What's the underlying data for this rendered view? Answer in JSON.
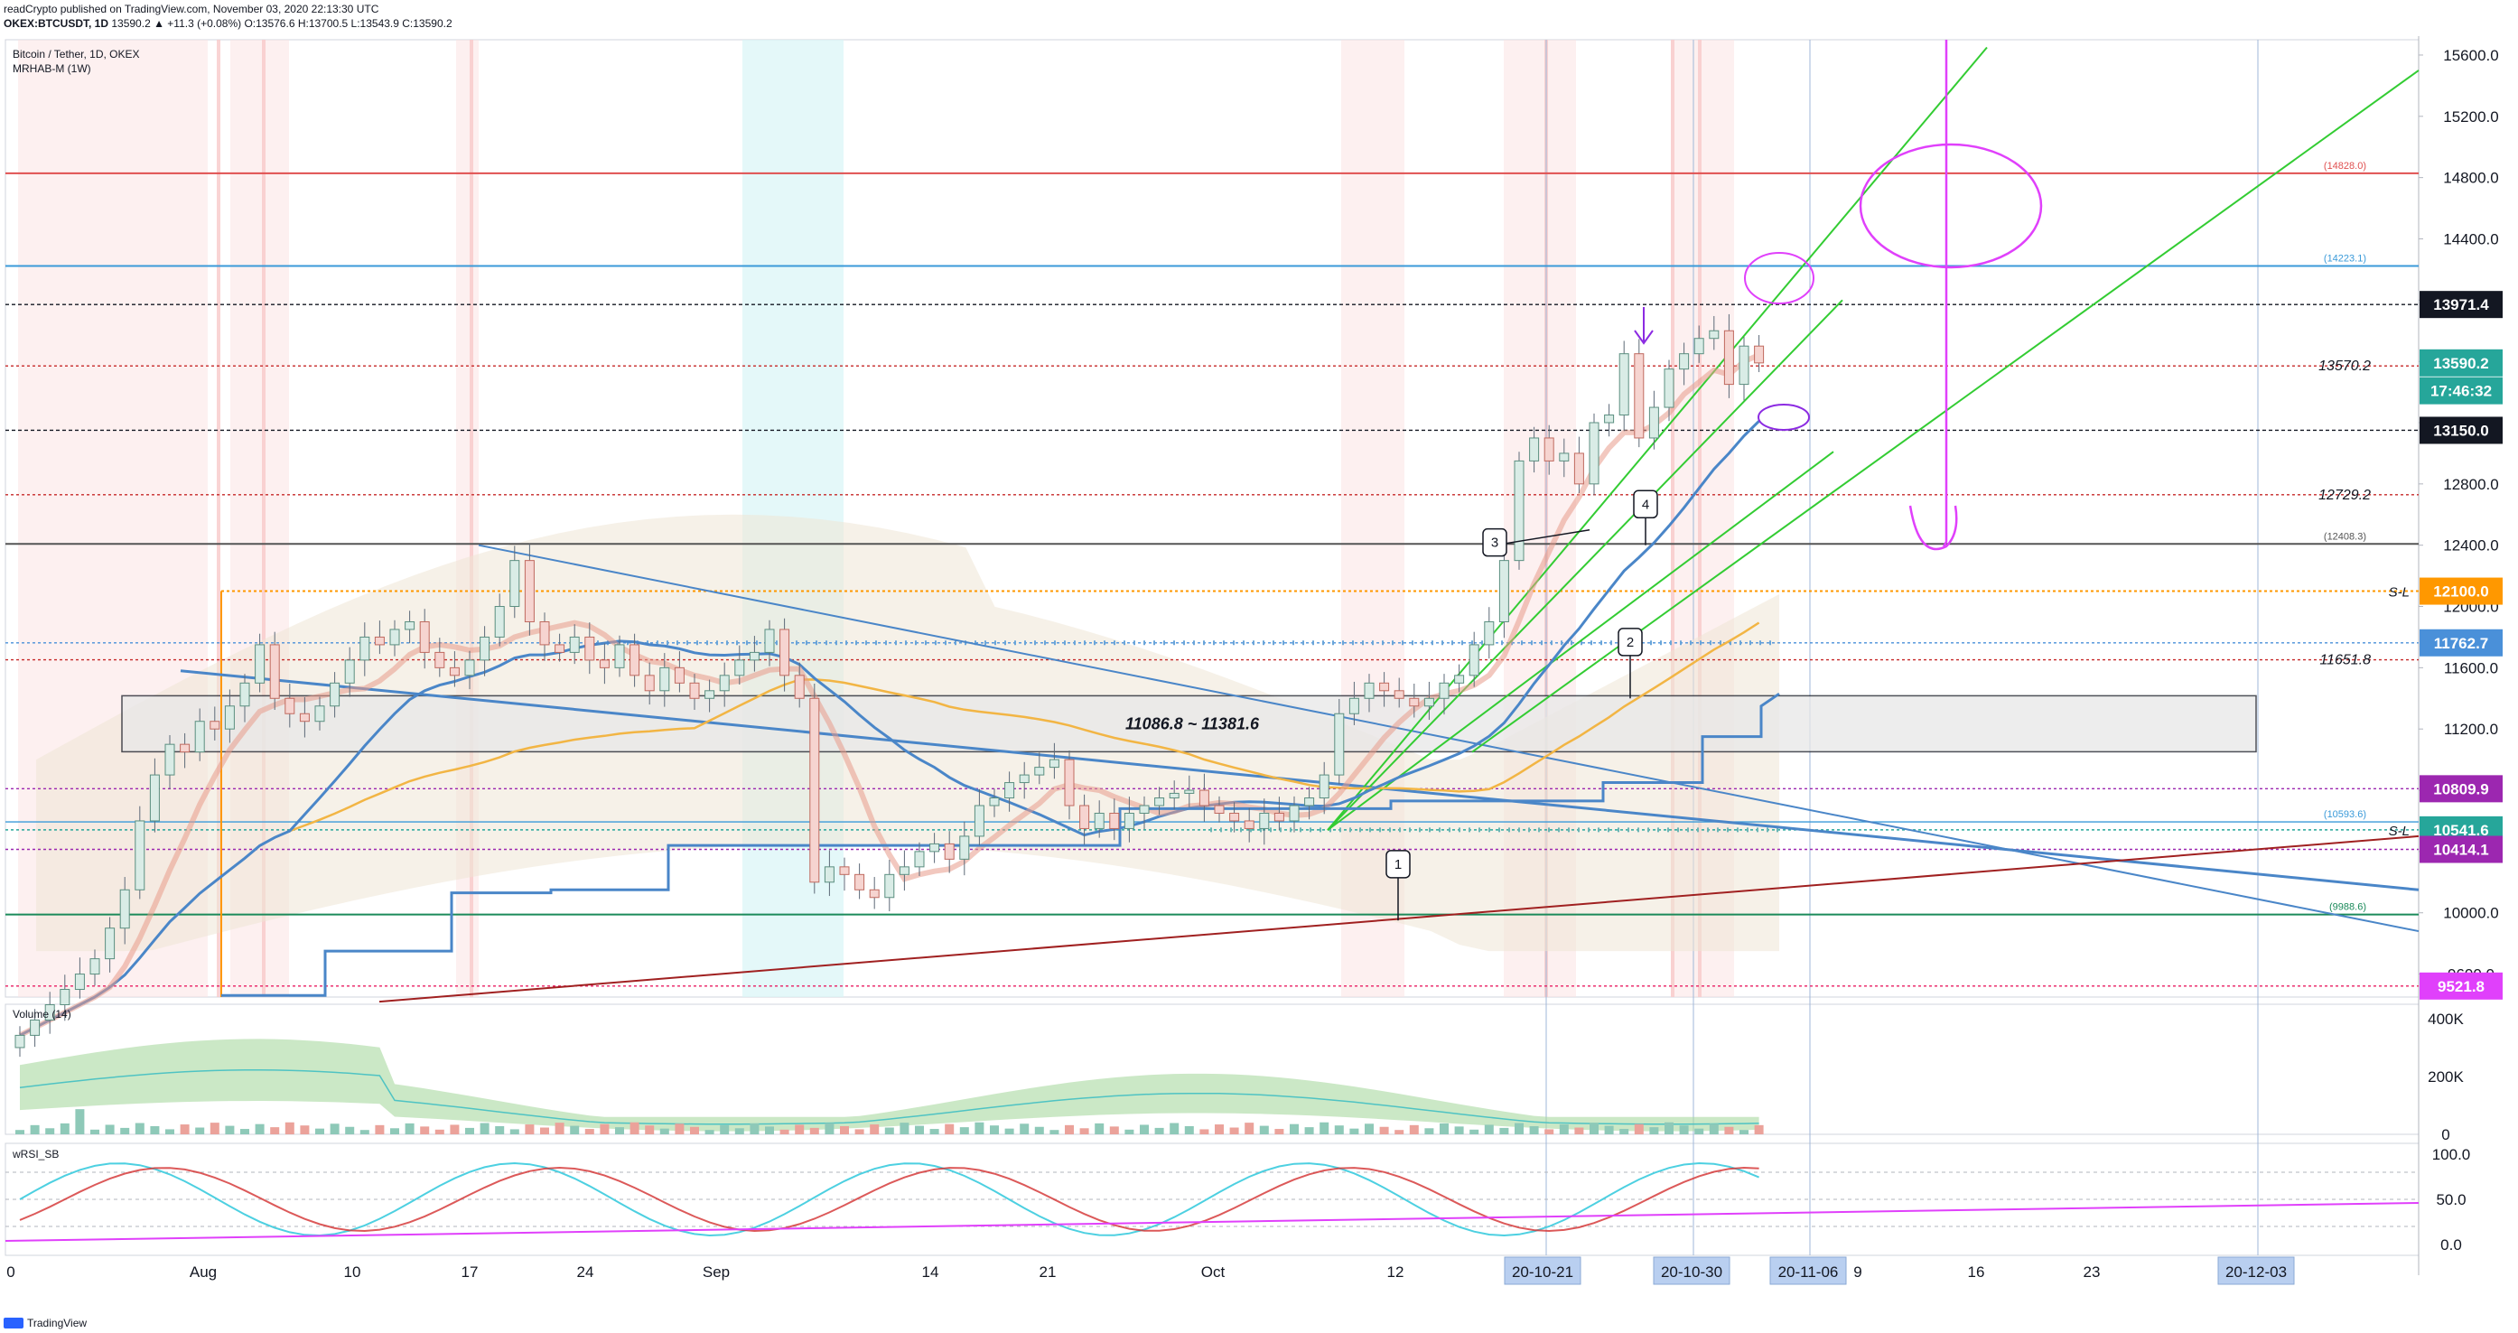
{
  "header": {
    "line1": "readCrypto published on TradingView.com, November 03, 2020 22:13:30 UTC",
    "symbol": "OKEX:BTCUSDT, 1D",
    "ohlc": "13590.2 ▲ +11.3 (+0.08%) O:13576.6 H:13700.5 L:13543.9 C:13590.2"
  },
  "legend": {
    "title": "Bitcoin / Tether, 1D, OKEX",
    "indicator": "MRHAB-M (1W)"
  },
  "watermark": "TradingView",
  "colors": {
    "up": "#7fb8a4",
    "down": "#e57373",
    "ma_blue": "#4a86c8",
    "ma_yellow": "#f2b544",
    "trend_green": "#33cc33",
    "support_red": "#a02020",
    "magenta": "#e040fb",
    "purple": "#8c2be2"
  },
  "chart_data": [
    {
      "type": "candlestick",
      "title": "Bitcoin / Tether, 1D, OKEX",
      "ylim": [
        9450,
        15700
      ],
      "x_ticks": [
        "0",
        "Aug",
        "10",
        "17",
        "24",
        "Sep",
        "14",
        "21",
        "Oct",
        "12",
        "20-10-21",
        "20-10-30",
        "20-11-06",
        "9",
        "16",
        "23",
        "20-12-03"
      ],
      "y_ticks": [
        "15600.0",
        "15200.0",
        "14800.0",
        "14400.0",
        "14000.0",
        "13600.0",
        "13200.0",
        "12800.0",
        "12400.0",
        "12000.0",
        "11600.0",
        "11200.0",
        "10800.0",
        "10400.0",
        "10000.0",
        "9600.0"
      ],
      "horizontal_levels": [
        {
          "value": 14828.0,
          "label": "(14828.0)",
          "color": "#e05050"
        },
        {
          "value": 14223.1,
          "label": "(14223.1)",
          "color": "#3a9ad9"
        },
        {
          "value": 13971.4,
          "label": "13971.4",
          "color": "#131722"
        },
        {
          "value": 13570.2,
          "label": "13570.2",
          "color": "#c62828"
        },
        {
          "value": 13150.0,
          "label": "13150.0",
          "color": "#131722"
        },
        {
          "value": 12729.2,
          "label": "12729.2",
          "color": "#c62828"
        },
        {
          "value": 12408.3,
          "label": "(12408.3)",
          "color": "#555555"
        },
        {
          "value": 12100.0,
          "label": "12100.0",
          "color": "#ff9800"
        },
        {
          "value": 11762.7,
          "label": "11762.7",
          "color": "#4a90d9"
        },
        {
          "value": 11651.8,
          "label": "11651.8",
          "color": "#c62828"
        },
        {
          "value": 10809.9,
          "label": "10809.9",
          "color": "#9c27b0"
        },
        {
          "value": 10593.6,
          "label": "(10593.6)",
          "color": "#3a9ad9"
        },
        {
          "value": 10541.6,
          "label": "10541.6",
          "color": "#26a69a"
        },
        {
          "value": 10414.1,
          "label": "10414.1",
          "color": "#9c27b0"
        },
        {
          "value": 9988.6,
          "label": "(9988.6)",
          "color": "#1b8a5a"
        },
        {
          "value": 9521.8,
          "label": "9521.8",
          "color": "#e91e63"
        }
      ],
      "price_tags": [
        {
          "value": 13971.4,
          "text": "13971.4",
          "bg": "#131722"
        },
        {
          "value": 13590.2,
          "text": "13590.2",
          "bg": "#26a69a"
        },
        {
          "value": 13550,
          "text": "17:46:32",
          "bg": "#26a69a"
        },
        {
          "value": 13150.0,
          "text": "13150.0",
          "bg": "#131722"
        },
        {
          "value": 12100.0,
          "text": "12100.0",
          "bg": "#ff9800"
        },
        {
          "value": 11762.7,
          "text": "11762.7",
          "bg": "#4a90d9"
        },
        {
          "value": 10809.9,
          "text": "10809.9",
          "bg": "#9c27b0"
        },
        {
          "value": 10541.6,
          "text": "10541.6",
          "bg": "#26a69a"
        },
        {
          "value": 10414.1,
          "text": "10414.1",
          "bg": "#9c27b0"
        },
        {
          "value": 9521.8,
          "text": "9521.8",
          "bg": "#e040fb"
        }
      ],
      "range_box": {
        "low": 11086.8,
        "high": 11381.6,
        "label": "11086.8 ~ 11381.6"
      },
      "sl_labels": [
        "S-L",
        "S-L"
      ],
      "callouts": [
        "1",
        "2",
        "3",
        "4"
      ],
      "candles_close": [
        9200,
        9300,
        9400,
        9500,
        9600,
        9700,
        9900,
        10150,
        10600,
        10900,
        11100,
        11050,
        11250,
        11200,
        11350,
        11500,
        11750,
        11400,
        11300,
        11250,
        11350,
        11500,
        11650,
        11800,
        11750,
        11850,
        11900,
        11700,
        11600,
        11550,
        11650,
        11800,
        12000,
        12300,
        11900,
        11750,
        11700,
        11800,
        11650,
        11600,
        11750,
        11550,
        11450,
        11600,
        11500,
        11400,
        11450,
        11550,
        11650,
        11700,
        11850,
        11550,
        11400,
        10200,
        10300,
        10250,
        10150,
        10100,
        10250,
        10300,
        10400,
        10450,
        10350,
        10500,
        10700,
        10750,
        10850,
        10900,
        10950,
        11000,
        10700,
        10550,
        10650,
        10550,
        10650,
        10700,
        10750,
        10780,
        10800,
        10700,
        10650,
        10600,
        10550,
        10650,
        10600,
        10700,
        10750,
        10900,
        11300,
        11400,
        11500,
        11450,
        11400,
        11350,
        11400,
        11500,
        11550,
        11750,
        11900,
        12300,
        12950,
        13100,
        12950,
        13000,
        12800,
        13200,
        13250,
        13650,
        13100,
        13300,
        13550,
        13650,
        13750,
        13800,
        13450,
        13700,
        13590
      ]
    },
    {
      "type": "area",
      "title": "Volume (14)",
      "y_ticks": [
        "400K",
        "200K",
        "0"
      ]
    },
    {
      "type": "line",
      "title": "wRSI_SB",
      "y_ticks": [
        "100.0",
        "50.0",
        "0.0"
      ]
    }
  ]
}
